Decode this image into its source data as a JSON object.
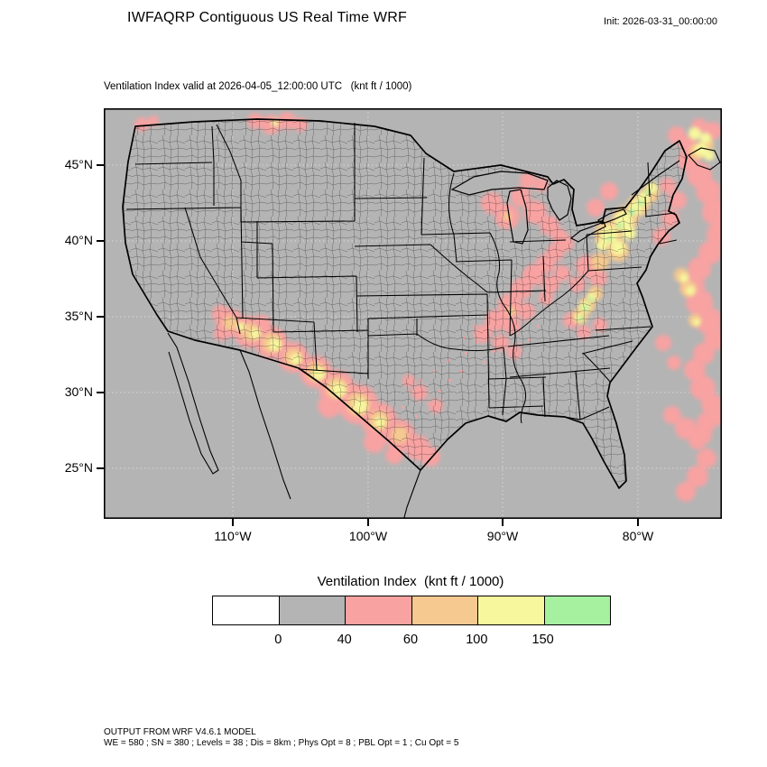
{
  "header": {
    "title": "IWFAQRP Contiguous US Real Time WRF",
    "init_label": "Init: 2026-03-31_00:00:00"
  },
  "map": {
    "subtitle": "Ventilation Index valid at 2026-04-05_12:00:00 UTC   (knt ft / 1000)",
    "lat_tick_labels": [
      "45°N",
      "40°N",
      "35°N",
      "30°N",
      "25°N"
    ],
    "lon_tick_labels": [
      "110°W",
      "100°W",
      "90°W",
      "80°W"
    ],
    "background_color": "#b4b4b4"
  },
  "legend": {
    "title": "Ventilation Index  (knt ft / 1000)",
    "colors": [
      "#ffffff",
      "#b4b4b4",
      "#f8a2a2",
      "#f5c98f",
      "#f7f79d",
      "#a5f1a0"
    ],
    "tick_labels": [
      "0",
      "40",
      "60",
      "100",
      "150"
    ]
  },
  "footer": {
    "line1": "OUTPUT FROM WRF V4.6.1 MODEL",
    "line2": "WE = 580 ; SN = 380 ; Levels = 38 ; Dis = 8km ; Phys Opt = 8 ; PBL Opt = 1 ; Cu Opt = 5"
  },
  "chart_data": {
    "type": "heatmap",
    "title": "IWFAQRP Contiguous US Real Time WRF",
    "variable": "Ventilation Index",
    "units": "knt ft / 1000",
    "region": "Contiguous US",
    "init_time": "2026-03-31_00:00:00",
    "valid_time": "2026-04-05_12:00:00 UTC",
    "colorbar": {
      "title": "Ventilation Index (knt ft / 1000)",
      "tick_labels": [
        "0",
        "40",
        "60",
        "100",
        "150"
      ],
      "colors": [
        "#ffffff",
        "#b4b4b4",
        "#f8a2a2",
        "#f5c98f",
        "#f7f79d",
        "#a5f1a0"
      ]
    },
    "x_axis": {
      "tick_labels": [
        "110°W",
        "100°W",
        "90°W",
        "80°W"
      ]
    },
    "y_axis": {
      "tick_labels": [
        "45°N",
        "40°N",
        "35°N",
        "30°N",
        "25°N"
      ]
    },
    "model_info": [
      "OUTPUT FROM WRF V4.6.1 MODEL",
      "WE = 580 ; SN = 380 ; Levels = 38 ; Dis = 8km ; Phys Opt = 8 ; PBL Opt = 1 ; Cu Opt = 5"
    ]
  }
}
